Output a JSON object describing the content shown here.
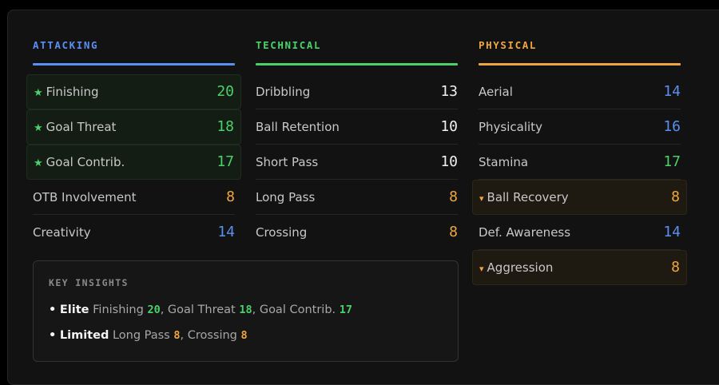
{
  "colors": {
    "attacking": "#5a8ff2",
    "technical": "#4bd16a",
    "physical": "#f0a640",
    "green": "#4bd16a",
    "blue": "#5a8ff2",
    "white": "#f0f0f0",
    "orange": "#f0a640"
  },
  "columns": {
    "attacking": {
      "title": "ATTACKING",
      "rows": [
        {
          "label": "Finishing",
          "value": "20"
        },
        {
          "label": "Goal Threat",
          "value": "18"
        },
        {
          "label": "Goal Contrib.",
          "value": "17"
        },
        {
          "label": "OTB Involvement",
          "value": "8"
        },
        {
          "label": "Creativity",
          "value": "14"
        }
      ]
    },
    "technical": {
      "title": "TECHNICAL",
      "rows": [
        {
          "label": "Dribbling",
          "value": "13"
        },
        {
          "label": "Ball Retention",
          "value": "10"
        },
        {
          "label": "Short Pass",
          "value": "10"
        },
        {
          "label": "Long Pass",
          "value": "8"
        },
        {
          "label": "Crossing",
          "value": "8"
        }
      ]
    },
    "physical": {
      "title": "PHYSICAL",
      "rows": [
        {
          "label": "Aerial",
          "value": "14"
        },
        {
          "label": "Physicality",
          "value": "16"
        },
        {
          "label": "Stamina",
          "value": "17"
        },
        {
          "label": "Ball Recovery",
          "value": "8"
        },
        {
          "label": "Def. Awareness",
          "value": "14"
        },
        {
          "label": "Aggression",
          "value": "8"
        }
      ]
    }
  },
  "insights": {
    "title": "KEY INSIGHTS",
    "elite": {
      "bullet": "•",
      "label": "Elite",
      "items": [
        {
          "name": "Finishing",
          "value": "20"
        },
        {
          "name": "Goal Threat",
          "value": "18"
        },
        {
          "name": "Goal Contrib.",
          "value": "17"
        }
      ]
    },
    "limited": {
      "bullet": "•",
      "label": "Limited",
      "items": [
        {
          "name": "Long Pass",
          "value": "8"
        },
        {
          "name": "Crossing",
          "value": "8"
        }
      ]
    }
  },
  "icons": {
    "star": "★",
    "down": "▾"
  }
}
